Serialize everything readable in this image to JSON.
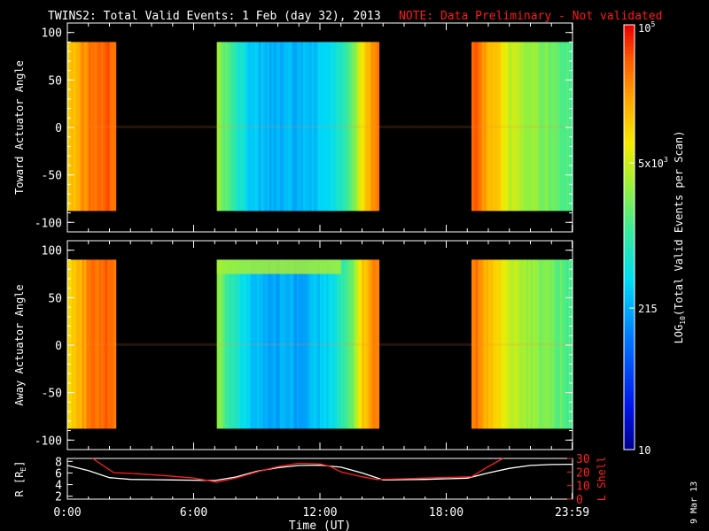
{
  "header": {
    "title": "TWINS2: Total Valid Events:  1 Feb (day  32), 2013",
    "note": "NOTE: Data Preliminary - Not validated",
    "note_color": "#ff1a1a"
  },
  "side_date": "9 Mar 13",
  "colorbar": {
    "label_main": "LOG",
    "label_sub": "10",
    "label_rest": "(Total Valid Events per Scan)",
    "ticks": [
      {
        "value": 10,
        "label": "10"
      },
      {
        "value": 215,
        "label": "215"
      },
      {
        "value": 5000,
        "base": "5x10",
        "exp": "3"
      },
      {
        "value": 100000,
        "base": "10",
        "exp": "5"
      }
    ],
    "range": [
      10,
      100000
    ],
    "scale": "log"
  },
  "chart_data": [
    {
      "type": "heatmap",
      "panel": "toward",
      "ylabel": "Toward Actuator Angle",
      "ylim": [
        -110,
        110
      ],
      "yticks": [
        -100,
        -50,
        0,
        50,
        100
      ],
      "angle_range": [
        -88,
        90
      ],
      "x_hours": [
        0,
        24
      ],
      "coverage_hours": [
        [
          -0.2,
          2.25
        ],
        [
          7.1,
          14.8
        ],
        [
          19.2,
          24.0
        ]
      ],
      "profile_hours": [
        0.0,
        0.5,
        1.0,
        1.5,
        2.0,
        2.25,
        7.1,
        7.6,
        8.0,
        8.5,
        9.0,
        9.5,
        10.0,
        10.5,
        11.0,
        11.5,
        12.0,
        12.5,
        13.0,
        13.5,
        14.0,
        14.5,
        14.8,
        19.2,
        19.5,
        20.0,
        20.5,
        21.0,
        21.5,
        22.0,
        22.5,
        23.0,
        23.5,
        24.0
      ],
      "profile_log": [
        4.1,
        4.25,
        4.5,
        4.65,
        4.65,
        4.6,
        3.55,
        3.15,
        2.9,
        2.6,
        2.45,
        2.4,
        2.35,
        2.45,
        2.3,
        2.45,
        2.5,
        2.65,
        2.85,
        3.2,
        3.9,
        4.45,
        4.55,
        4.6,
        4.6,
        4.2,
        4.0,
        3.7,
        3.6,
        3.5,
        3.4,
        3.3,
        3.2,
        3.1
      ]
    },
    {
      "type": "heatmap",
      "panel": "away",
      "ylabel": "Away Actuator Angle",
      "ylim": [
        -110,
        110
      ],
      "yticks": [
        -100,
        -50,
        0,
        50,
        100
      ],
      "angle_range": [
        -88,
        90
      ],
      "x_hours": [
        0,
        24
      ],
      "coverage_hours": [
        [
          -0.2,
          2.25
        ],
        [
          7.1,
          14.8
        ],
        [
          19.2,
          24.0
        ]
      ],
      "profile_hours": [
        0.0,
        0.5,
        1.0,
        1.5,
        2.0,
        2.25,
        7.1,
        7.6,
        8.0,
        8.5,
        9.0,
        9.5,
        10.0,
        10.5,
        11.0,
        11.5,
        12.0,
        12.5,
        13.0,
        13.5,
        14.0,
        14.5,
        14.8,
        19.2,
        19.5,
        20.0,
        20.5,
        21.0,
        21.5,
        22.0,
        22.5,
        23.0,
        23.5,
        24.0
      ],
      "profile_log": [
        4.05,
        4.2,
        4.45,
        4.6,
        4.62,
        4.58,
        3.5,
        3.1,
        2.85,
        2.55,
        2.4,
        2.35,
        2.3,
        2.4,
        2.25,
        2.4,
        2.45,
        2.6,
        2.85,
        3.3,
        4.05,
        4.4,
        4.5,
        4.55,
        4.5,
        4.15,
        3.95,
        3.7,
        3.6,
        3.5,
        3.4,
        3.3,
        3.2,
        3.1
      ],
      "top_band": {
        "angle_from": 75,
        "angle_to": 90,
        "hours": [
          7.1,
          13.0
        ],
        "log": 3.55
      }
    },
    {
      "type": "line",
      "panel": "orbit",
      "xlabel": "Time (UT)",
      "x_ticks": [
        {
          "value": 0,
          "label": "0:00"
        },
        {
          "value": 6,
          "label": "6:00"
        },
        {
          "value": 12,
          "label": "12:00"
        },
        {
          "value": 18,
          "label": "18:00"
        },
        {
          "value": 23.98,
          "label": "23:59"
        }
      ],
      "left_axis": {
        "label": "R [R",
        "label_sub": "E",
        "label_end": "]",
        "ylim": [
          1.5,
          8.5
        ],
        "ticks": [
          2,
          4,
          6,
          8
        ]
      },
      "right_axis": {
        "label": "L Shell",
        "ylim": [
          0,
          30
        ],
        "ticks": [
          0,
          10,
          20,
          30
        ],
        "color": "#ff2020"
      },
      "series": [
        {
          "axis": "left",
          "color": "#ffffff",
          "x": [
            0.0,
            1.0,
            2.0,
            3.0,
            4.0,
            5.0,
            6.0,
            7.0,
            8.0,
            9.0,
            10.0,
            11.0,
            12.0,
            13.0,
            14.0,
            15.0,
            16.0,
            17.0,
            18.0,
            19.0,
            20.0,
            21.0,
            22.0,
            23.0,
            24.0
          ],
          "y": [
            7.3,
            6.4,
            5.2,
            4.9,
            4.85,
            4.8,
            4.75,
            4.7,
            5.3,
            6.3,
            6.9,
            7.3,
            7.35,
            7.0,
            6.0,
            4.8,
            4.85,
            4.9,
            5.0,
            5.1,
            6.0,
            6.8,
            7.3,
            7.45,
            7.5
          ]
        },
        {
          "axis": "right",
          "color": "#ff2020",
          "x": [
            1.2,
            2.2,
            3.0,
            4.5,
            6.0,
            7.1,
            8.0,
            9.0,
            10.0,
            11.0,
            12.0,
            12.5,
            13.0,
            14.0,
            14.7,
            16.0,
            17.0,
            18.0,
            19.2,
            20.0,
            20.7
          ],
          "y": [
            30,
            19.5,
            19.0,
            17.5,
            15.5,
            12.5,
            15.5,
            20.0,
            24.0,
            26.5,
            26.0,
            24.0,
            20.0,
            16.5,
            14.5,
            15.0,
            15.5,
            16.0,
            16.5,
            24.0,
            30
          ]
        }
      ]
    }
  ]
}
